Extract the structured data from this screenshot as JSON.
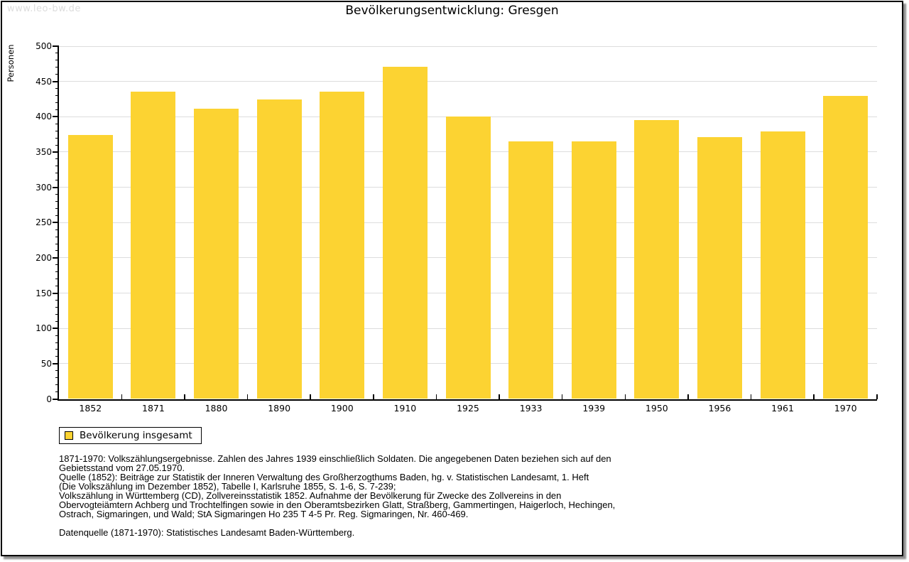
{
  "page": {
    "watermark": "www.leo-bw.de",
    "title": "Bevölkerungsentwicklung: Gresgen"
  },
  "chart_data": {
    "type": "bar",
    "title": "Bevölkerungsentwicklung: Gresgen",
    "ylabel": "Personen",
    "xlabel": "",
    "categories": [
      "1852",
      "1871",
      "1880",
      "1890",
      "1900",
      "1910",
      "1925",
      "1933",
      "1939",
      "1950",
      "1956",
      "1961",
      "1970"
    ],
    "values": [
      374,
      436,
      411,
      424,
      436,
      471,
      400,
      365,
      365,
      395,
      371,
      379,
      430
    ],
    "series_name": "Bevölkerung insgesamt",
    "ylim": [
      0,
      500
    ],
    "ytick_step": 50,
    "yminor_step": 10,
    "grid": true,
    "legend_position": "bottom-left",
    "colors": {
      "bar": "#FCD332",
      "grid": "#DDDDDD",
      "axis": "#000000"
    }
  },
  "legend": {
    "label": "Bevölkerung insgesamt"
  },
  "footer": {
    "lines": [
      "1871-1970: Volkszählungsergebnisse. Zahlen des Jahres 1939 einschließlich Soldaten. Die angegebenen Daten beziehen sich auf den",
      "Gebietsstand vom 27.05.1970.",
      "Quelle (1852): Beiträge zur Statistik der Inneren Verwaltung des Großherzogthums Baden, hg. v. Statistischen Landesamt, 1. Heft",
      "(Die Volkszählung im Dezember 1852), Tabelle I, Karlsruhe 1855, S. 1-6, S. 7-239;",
      "Volkszählung in Württemberg (CD), Zollvereinsstatistik 1852. Aufnahme der Bevölkerung für Zwecke des Zollvereins in den",
      "Obervogteiämtern Achberg und Trochtelfingen sowie in den Oberamtsbezirken Glatt, Straßberg, Gammertingen, Haigerloch, Hechingen,",
      "Ostrach, Sigmaringen, und Wald; StA Sigmaringen Ho 235 T 4-5 Pr. Reg. Sigmaringen, Nr. 460-469.",
      "Datenquelle (1871-1970): Statistisches Landesamt Baden-Württemberg."
    ]
  }
}
